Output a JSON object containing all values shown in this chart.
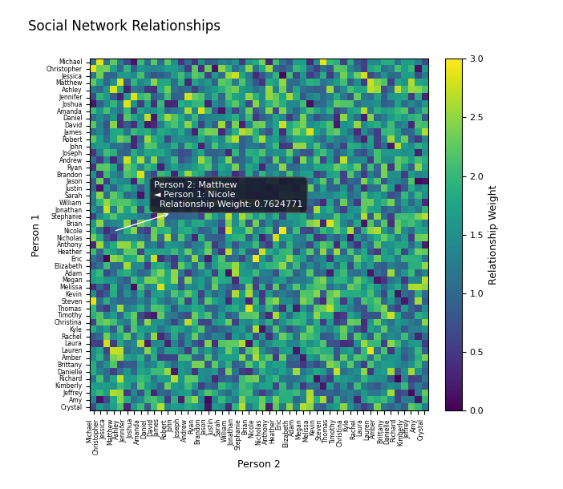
{
  "names": [
    "Michael",
    "Christopher",
    "Jessica",
    "Matthew",
    "Ashley",
    "Jennifer",
    "Joshua",
    "Amanda",
    "Daniel",
    "David",
    "James",
    "Robert",
    "John",
    "Joseph",
    "Andrew",
    "Ryan",
    "Brandon",
    "Jason",
    "Justin",
    "Sarah",
    "William",
    "Jonathan",
    "Stephanie",
    "Brian",
    "Nicole",
    "Nicholas",
    "Anthony",
    "Heather",
    "Eric",
    "Elizabeth",
    "Adam",
    "Megan",
    "Melissa",
    "Kevin",
    "Steven",
    "Thomas",
    "Timothy",
    "Christina",
    "Kyle",
    "Rachel",
    "Laura",
    "Lauren",
    "Amber",
    "Brittany",
    "Danielle",
    "Richard",
    "Kimberly",
    "Jeffrey",
    "Amy",
    "Crystal"
  ],
  "title": "Social Network Relationships",
  "xlabel": "Person 2",
  "ylabel": "Person 1",
  "colorbar_label": "Relationship Weight",
  "cmap": "viridis",
  "vmin": 0,
  "vmax": 3,
  "seed": 42,
  "tooltip_person2": "Matthew",
  "tooltip_person1": "Nicole",
  "tooltip_weight": 0.7624771,
  "figsize": [
    7.02,
    6.1
  ],
  "dpi": 100,
  "title_fontsize": 12,
  "axis_label_fontsize": 9,
  "tick_fontsize": 5.5,
  "colorbar_label_fontsize": 9,
  "colorbar_tick_fontsize": 8,
  "tooltip_fontsize": 8
}
